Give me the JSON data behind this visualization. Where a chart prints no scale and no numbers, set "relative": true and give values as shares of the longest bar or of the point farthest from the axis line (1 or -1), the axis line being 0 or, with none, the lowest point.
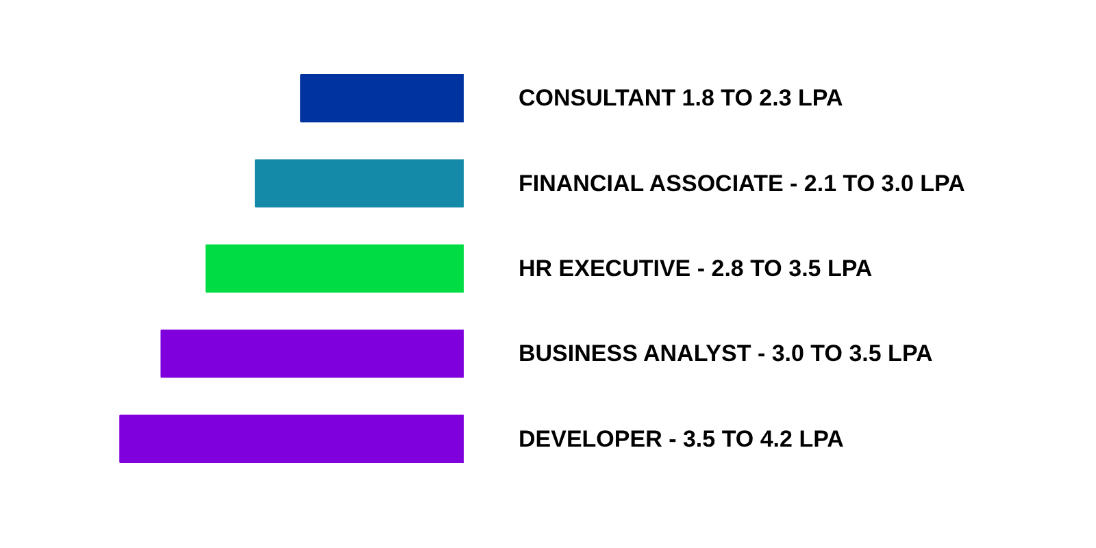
{
  "chart_data": {
    "type": "bar",
    "orientation": "horizontal",
    "relative": true,
    "categories": [
      "CONSULTANT 1.8 TO 2.3 LPA",
      "FINANCIAL ASSOCIATE - 2.1 TO 3.0 LPA",
      "HR EXECUTIVE - 2.8 TO 3.5 LPA",
      "BUSINESS ANALYST - 3.0 TO 3.5 LPA",
      "DEVELOPER - 3.5 TO 4.2 LPA"
    ],
    "values": [
      0.474,
      0.606,
      0.749,
      0.88,
      1
    ],
    "colors": [
      "#0033a0",
      "#1589a8",
      "#00dd44",
      "#8000dd",
      "#8000dd"
    ]
  }
}
